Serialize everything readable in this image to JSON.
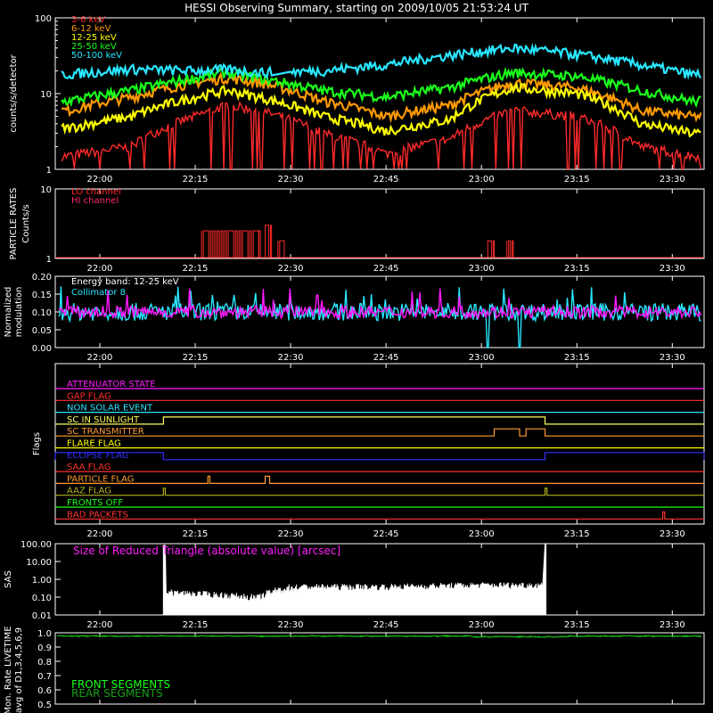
{
  "title": "HESSI Observing Summary, starting on 2009/10/05 21:53:24 UT",
  "time_axis": {
    "start": "21:53:24",
    "end": "23:35:00",
    "tick_labels": [
      "22:00",
      "22:15",
      "22:30",
      "22:45",
      "23:00",
      "23:15",
      "23:30"
    ]
  },
  "chart_data": [
    {
      "type": "line",
      "panel": "count_rates",
      "ylabel": "counts/s/detector",
      "yscale": "log",
      "ylim": [
        1,
        100
      ],
      "y_ticks": [
        "100",
        "10",
        "1"
      ],
      "note": "values sampled at x = 21:55, 22:05, 22:15, 22:20, 22:25, 22:35, 22:45, 22:55, 23:05, 23:15, 23:25, 23:33",
      "x": [
        "21:55",
        "22:05",
        "22:15",
        "22:20",
        "22:25",
        "22:35",
        "22:45",
        "22:55",
        "23:05",
        "23:15",
        "23:25",
        "23:33"
      ],
      "series": [
        {
          "name": "3-6 keV",
          "color": "#ff2a2a",
          "values": [
            1.5,
            2.0,
            5.0,
            7.0,
            6.0,
            3.0,
            1.6,
            2.5,
            6.0,
            5.0,
            2.0,
            1.5
          ]
        },
        {
          "name": "6-12 keV",
          "color": "#ff9a00",
          "values": [
            6,
            9,
            14,
            16,
            14,
            8,
            5,
            7,
            14,
            12,
            6,
            5
          ]
        },
        {
          "name": "12-25 keV",
          "color": "#ffff00",
          "values": [
            3.5,
            5,
            9,
            11,
            9,
            5,
            3.2,
            4.5,
            12,
            10,
            4,
            3
          ]
        },
        {
          "name": "25-50 keV",
          "color": "#1aff1a",
          "values": [
            8,
            11,
            16,
            19,
            16,
            11,
            9,
            12,
            19,
            17,
            11,
            8
          ]
        },
        {
          "name": "50-100 keV",
          "color": "#29e6ff",
          "values": [
            18,
            21,
            20,
            21,
            19,
            20,
            24,
            32,
            40,
            33,
            24,
            18
          ]
        }
      ]
    },
    {
      "type": "line",
      "panel": "particle_rates",
      "ylabel": "PARTICLE RATES",
      "ylabel2": "Counts/s",
      "yscale": "log",
      "ylim": [
        1,
        10
      ],
      "y_ticks": [
        "10",
        "1"
      ],
      "series": [
        {
          "name": "LO channel",
          "color": "#ff2a2a",
          "bursts": [
            [
              "22:16",
              "22:25",
              2.5
            ],
            [
              "22:26",
              "22:27",
              3.0
            ],
            [
              "22:28",
              "22:29",
              1.8
            ]
          ]
        },
        {
          "name": "HI channel",
          "color": "#ff2a6a",
          "bursts": [
            [
              "23:01",
              "23:02",
              1.8
            ],
            [
              "23:04",
              "23:05",
              1.8
            ]
          ]
        }
      ]
    },
    {
      "type": "line",
      "panel": "modulation",
      "ylabel": "Normalized",
      "ylabel2": "modulation",
      "ylim": [
        0.0,
        0.2
      ],
      "y_ticks": [
        "0.20",
        "0.15",
        "0.10",
        "0.05",
        "0.00"
      ],
      "annotation": "Energy band: 12-25 keV",
      "series": [
        {
          "name": "Collimator 8",
          "color": "#29e6ff",
          "mean": 0.1,
          "dropouts": [
            [
              "23:01",
              "23:06"
            ]
          ]
        },
        {
          "name": "",
          "color": "#ff1aff",
          "mean": 0.1
        }
      ]
    },
    {
      "type": "table",
      "panel": "flags",
      "ylabel": "Flags",
      "flags": [
        {
          "name": "ATTENUATOR STATE",
          "color": "#ff1aff"
        },
        {
          "name": "GAP FLAG",
          "color": "#ff3030"
        },
        {
          "name": "NON SOLAR EVENT",
          "color": "#29e6ff"
        },
        {
          "name": "SC IN SUNLIGHT",
          "color": "#ffff60",
          "on": [
            [
              "22:10",
              "23:10"
            ]
          ]
        },
        {
          "name": "SC TRANSMITTER",
          "color": "#ff9a30",
          "on": [
            [
              "23:02",
              "23:06"
            ],
            [
              "23:07",
              "23:10"
            ]
          ]
        },
        {
          "name": "FLARE FLAG",
          "color": "#ffff00"
        },
        {
          "name": "ECLIPSE FLAG",
          "color": "#3030ff",
          "on": [
            [
              "21:53",
              "22:10"
            ],
            [
              "23:10",
              "23:35"
            ]
          ]
        },
        {
          "name": "SAA FLAG",
          "color": "#ff3030"
        },
        {
          "name": "PARTICLE FLAG",
          "color": "#ff9a30",
          "on": [
            [
              "22:17",
              "22:17.3"
            ],
            [
              "22:26",
              "22:26.7"
            ]
          ]
        },
        {
          "name": "AAZ FLAG",
          "color": "#b0b020",
          "on": [
            [
              "22:10",
              "22:10.3"
            ],
            [
              "23:10",
              "23:10.3"
            ]
          ]
        },
        {
          "name": "FRONTS OFF",
          "color": "#1aff1a"
        },
        {
          "name": "BAD PACKETS",
          "color": "#ff3030",
          "on": [
            [
              "23:28.5",
              "23:28.8"
            ]
          ]
        }
      ]
    },
    {
      "type": "area",
      "panel": "sas",
      "ylabel": "SAS",
      "yscale": "log",
      "ylim": [
        0.01,
        100
      ],
      "y_ticks": [
        "100.00",
        "10.00",
        "1.00",
        "0.10",
        "0.01"
      ],
      "legend": "Size of Reduced Triangle (absolute value) [arcsec]",
      "color": "#ffffff",
      "x": [
        "22:10",
        "22:25",
        "22:30",
        "22:45",
        "23:00",
        "23:10"
      ],
      "values": [
        0.2,
        0.1,
        0.4,
        0.4,
        0.5,
        0.5
      ]
    },
    {
      "type": "line",
      "panel": "livetime",
      "ylabel": "Mon. Rate LIVETIME",
      "ylabel2": "avg of D1,3,4,5,6,9",
      "ylim": [
        0.5,
        1.0
      ],
      "y_ticks": [
        "1.0",
        "0.9",
        "0.8",
        "0.7",
        "0.6",
        "0.5"
      ],
      "series": [
        {
          "name": "FRONT SEGMENTS",
          "color": "#1aff1a",
          "values": [
            0.98,
            0.98,
            0.98
          ]
        },
        {
          "name": "REAR SEGMENTS",
          "color": "#15a015",
          "values": [
            0.98,
            0.98,
            0.98
          ]
        }
      ]
    }
  ]
}
